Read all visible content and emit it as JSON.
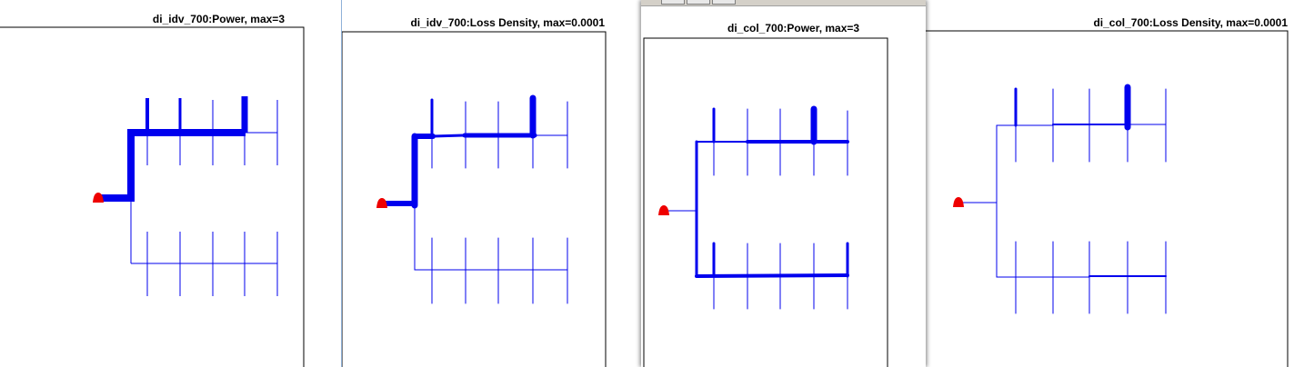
{
  "windows": [
    {
      "id": "win1",
      "title": "di_idv_700:Power, max=3"
    },
    {
      "id": "win2",
      "title": "di_idv_700:Loss Density, max=0.0001"
    },
    {
      "id": "win3",
      "title": "di_col_700:Power, max=3"
    },
    {
      "id": "win4",
      "title": "di_col_700:Loss Density, max=0.0001"
    }
  ],
  "colors": {
    "network": "#0000ee",
    "source": "#ee0000",
    "frame": "#000000"
  }
}
